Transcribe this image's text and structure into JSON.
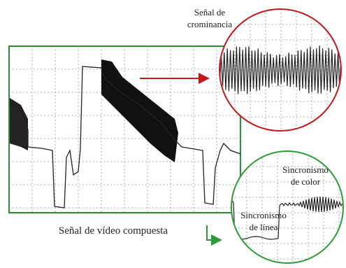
{
  "annotations": {
    "chrominance": [
      "Señal de",
      "crominancia"
    ],
    "composite": "Señal de vídeo compuesta",
    "color_sync": [
      "Sincronismo",
      "de color"
    ],
    "line_sync": [
      "Sincronismo",
      "de línea"
    ]
  }
}
